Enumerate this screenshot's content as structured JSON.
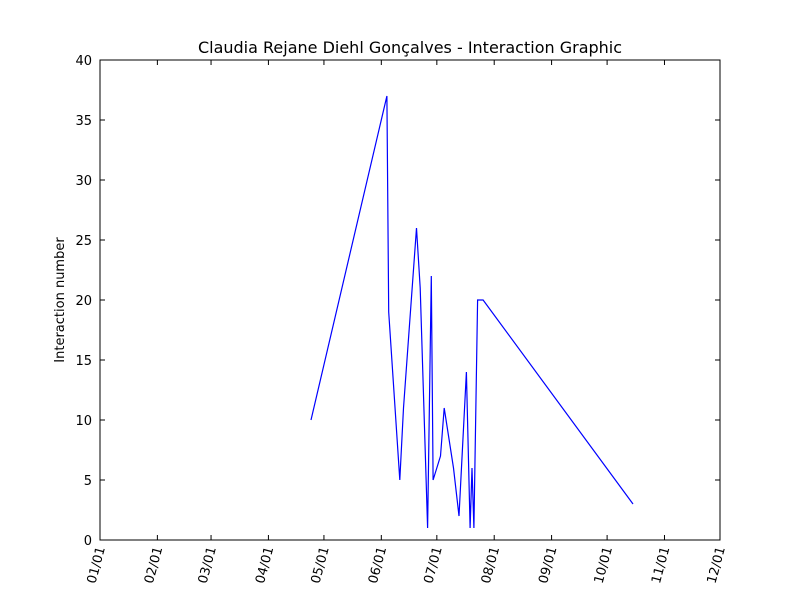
{
  "chart_data": {
    "type": "line",
    "title": "Claudia Rejane Diehl Gonçalves - Interaction Graphic",
    "xlabel": "",
    "ylabel": "Interaction number",
    "xlim": [
      "2000-01-01",
      "2000-12-01"
    ],
    "ylim": [
      0,
      40
    ],
    "x_ticks": [
      "01/01",
      "02/01",
      "03/01",
      "04/01",
      "05/01",
      "06/01",
      "07/01",
      "08/01",
      "09/01",
      "10/01",
      "11/01",
      "12/01"
    ],
    "y_ticks": [
      0,
      5,
      10,
      15,
      20,
      25,
      30,
      35,
      40
    ],
    "grid": false,
    "series": [
      {
        "color": "#0000ff",
        "x": [
          "2000-04-24",
          "2000-06-04",
          "2000-06-05",
          "2000-06-11",
          "2000-06-13",
          "2000-06-20",
          "2000-06-22",
          "2000-06-26",
          "2000-06-28",
          "2000-06-29",
          "2000-07-03",
          "2000-07-05",
          "2000-07-10",
          "2000-07-13",
          "2000-07-17",
          "2000-07-19",
          "2000-07-20",
          "2000-07-21",
          "2000-07-23",
          "2000-07-26",
          "2000-10-15"
        ],
        "values": [
          10,
          37,
          19,
          5,
          11,
          26,
          21,
          1,
          22,
          5,
          7,
          11,
          6,
          2,
          14,
          1,
          6,
          1,
          20,
          20,
          3
        ]
      }
    ]
  }
}
